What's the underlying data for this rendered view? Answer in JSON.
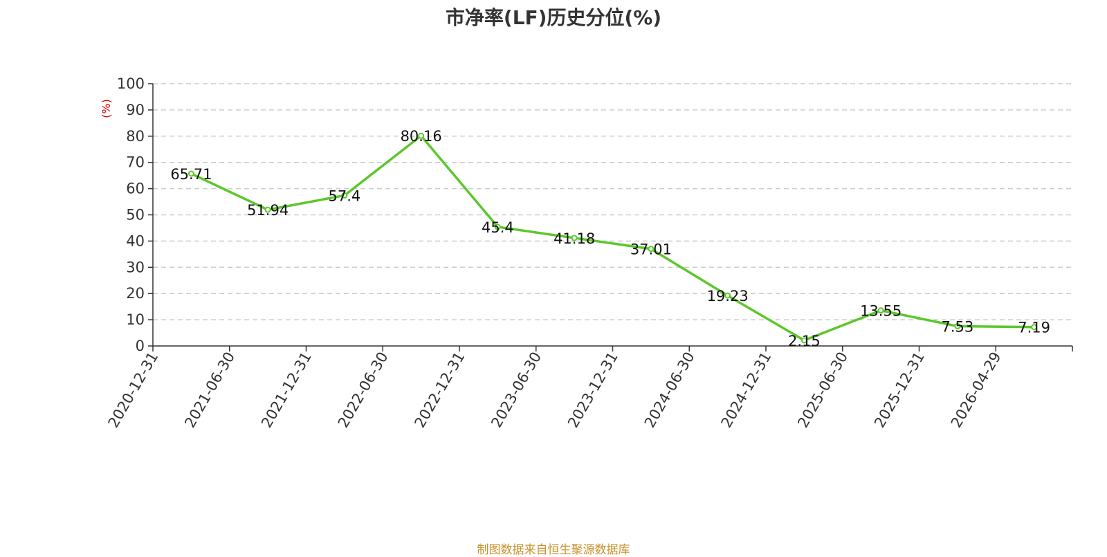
{
  "chart_data": {
    "type": "line",
    "title": "市净率(LF)历史分位(%)",
    "ylabel": "(%)",
    "xlabel": "",
    "categories": [
      "2020-12-31",
      "2021-06-30",
      "2021-12-31",
      "2022-06-30",
      "2022-12-31",
      "2023-06-30",
      "2023-12-31",
      "2024-06-30",
      "2024-12-31",
      "2025-06-30",
      "2025-12-31",
      "2026-04-29"
    ],
    "series": [
      {
        "values": [
          65.71,
          51.94,
          57.4,
          80.16,
          45.4,
          41.18,
          37.01,
          19.23,
          2.15,
          13.55,
          7.53,
          7.19
        ]
      }
    ],
    "data_labels": [
      "65.71",
      "51.94",
      "57.4",
      "80.16",
      "45.4",
      "41.18",
      "37.01",
      "19.23",
      "2.15",
      "13.55",
      "7.53",
      "7.19"
    ],
    "ylim": [
      0,
      100
    ],
    "yticks": [
      0,
      10,
      20,
      30,
      40,
      50,
      60,
      70,
      80,
      90,
      100
    ],
    "grid": true,
    "line_color": "#5cc72a",
    "axis_color": "#333333",
    "ylabel_color": "#e60000"
  },
  "source": "制图数据来自恒生聚源数据库"
}
